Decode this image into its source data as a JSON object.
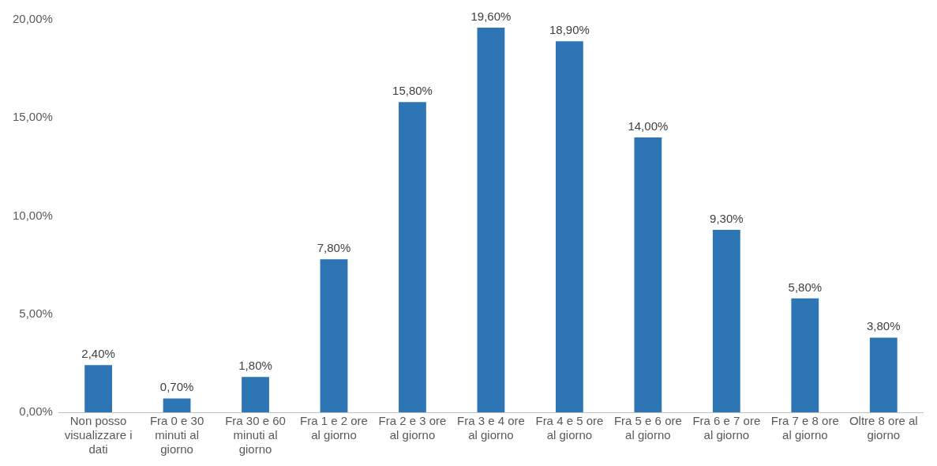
{
  "chart_data": {
    "type": "bar",
    "categories": [
      "Non posso visualizzare i dati",
      "Fra 0 e 30 minuti al giorno",
      "Fra 30 e 60 minuti al giorno",
      "Fra 1 e 2 ore al giorno",
      "Fra 2 e 3 ore al giorno",
      "Fra 3 e 4 ore al giorno",
      "Fra 4 e 5 ore al giorno",
      "Fra 5 e 6 ore al giorno",
      "Fra 6 e 7 ore al giorno",
      "Fra 7 e 8 ore al giorno",
      "Oltre 8 ore al giorno"
    ],
    "values": [
      2.4,
      0.7,
      1.8,
      7.8,
      15.8,
      19.6,
      18.9,
      14.0,
      9.3,
      5.8,
      3.8
    ],
    "value_labels": [
      "2,40%",
      "0,70%",
      "1,80%",
      "7,80%",
      "15,80%",
      "19,60%",
      "18,90%",
      "14,00%",
      "9,30%",
      "5,80%",
      "3,80%"
    ],
    "color": "#2e75b6",
    "ylim": [
      0,
      20
    ],
    "yticks": [
      {
        "value": 0,
        "label": "0,00%"
      },
      {
        "value": 5,
        "label": "5,00%"
      },
      {
        "value": 10,
        "label": "10,00%"
      },
      {
        "value": 15,
        "label": "15,00%"
      },
      {
        "value": 20,
        "label": "20,00%"
      }
    ],
    "grid": false,
    "legend": false
  }
}
